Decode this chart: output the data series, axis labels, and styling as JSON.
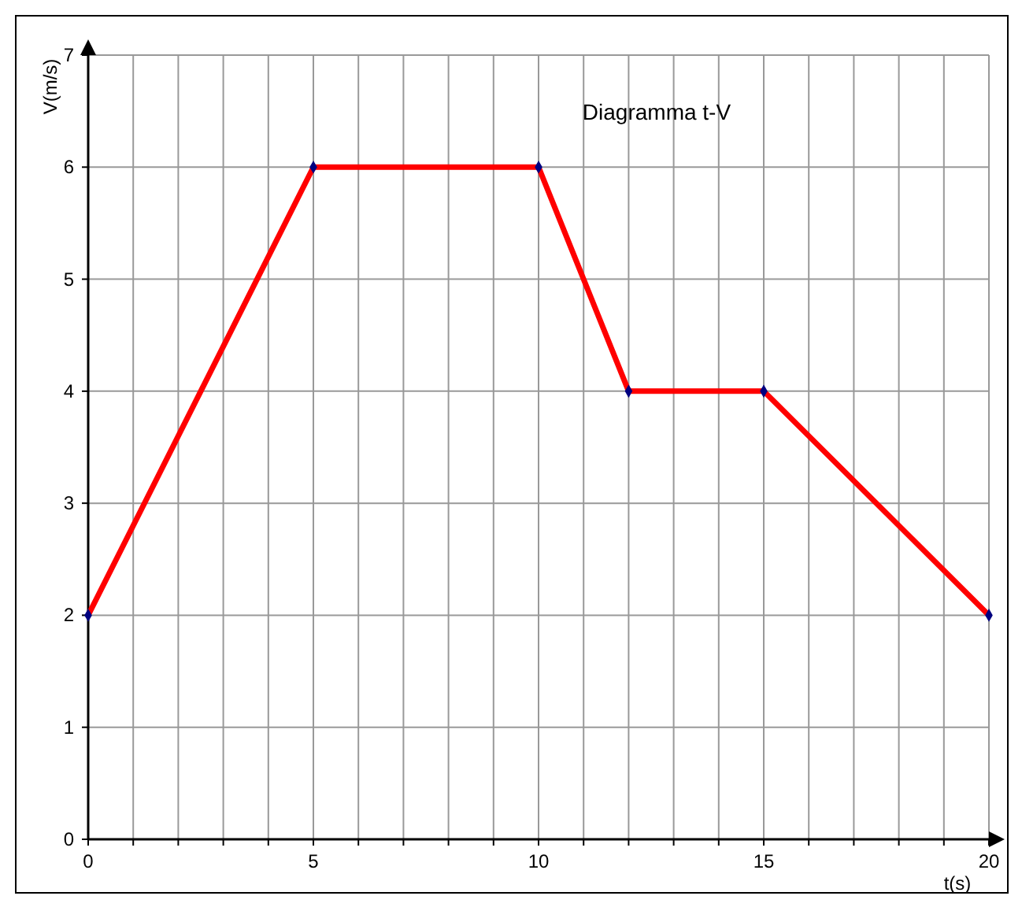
{
  "chart_data": {
    "type": "line",
    "title": "Diagramma t-V",
    "xlabel": "t(s)",
    "ylabel": "V(m/s)",
    "x": [
      0,
      5,
      10,
      12,
      15,
      20
    ],
    "series": [
      {
        "color": "#ff0000",
        "values": [
          2,
          6,
          6,
          4,
          4,
          2
        ]
      }
    ],
    "xlim": [
      0,
      20
    ],
    "xticks": [
      0,
      {
        "value": 1,
        "label": null
      },
      {
        "value": 2,
        "label": null
      },
      {
        "value": 3,
        "label": null
      },
      {
        "value": 4,
        "label": null
      },
      5,
      {
        "value": 6,
        "label": null
      },
      {
        "value": 7,
        "label": null
      },
      {
        "value": 8,
        "label": null
      },
      {
        "value": 9,
        "label": null
      },
      10,
      {
        "value": 11,
        "label": null
      },
      {
        "value": 12,
        "label": null
      },
      {
        "value": 13,
        "label": null
      },
      {
        "value": 14,
        "label": null
      },
      15,
      {
        "value": 16,
        "label": null
      },
      {
        "value": 17,
        "label": null
      },
      {
        "value": 18,
        "label": null
      },
      {
        "value": 19,
        "label": null
      },
      20
    ],
    "ylim": [
      0,
      7
    ],
    "yticks": [
      0,
      1,
      2,
      3,
      4,
      5,
      6,
      7
    ],
    "grid": true,
    "marker": "diamond",
    "line_style": "solid"
  }
}
